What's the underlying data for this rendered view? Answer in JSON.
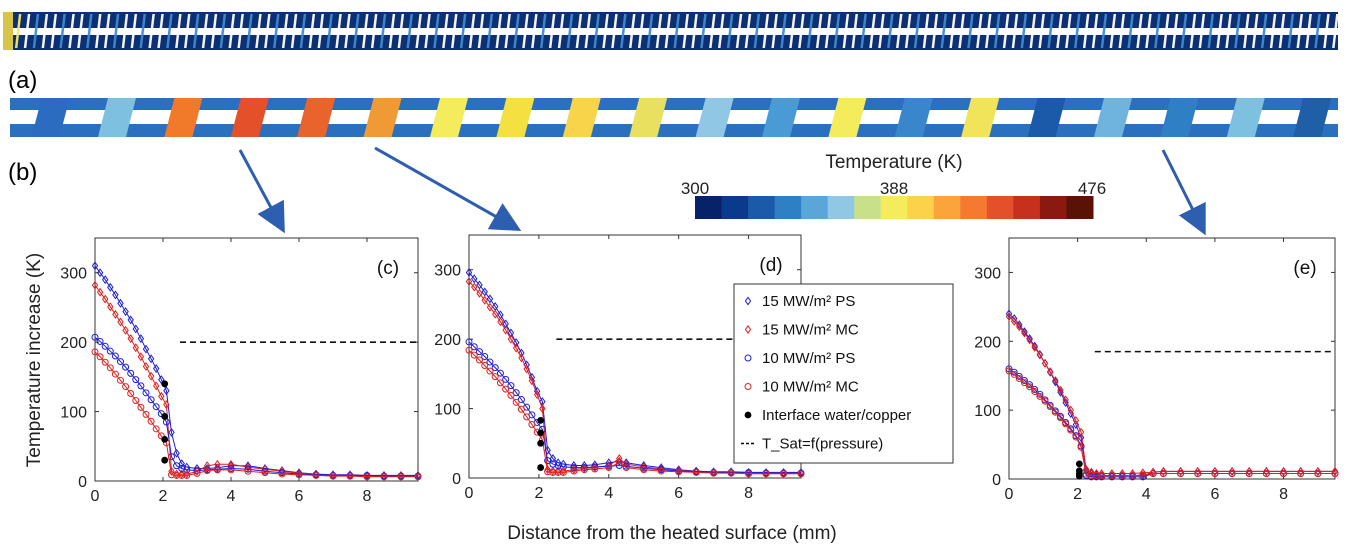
{
  "figure": {
    "panel_a": "(a)",
    "panel_b": "(b)",
    "xlabel": "Distance from the heated surface (mm)",
    "ylabel": "Temperature increase (K)"
  },
  "colorbar": {
    "title": "Temperature (K)",
    "ticks": [
      "300",
      "388",
      "476"
    ],
    "range": [
      300,
      476
    ],
    "colors": [
      "#08226a",
      "#0a3a8c",
      "#1b5aa8",
      "#2f7fc4",
      "#5aa6d8",
      "#8fc7e4",
      "#c8e08a",
      "#f4ec5c",
      "#fbd24a",
      "#fba43c",
      "#f57a30",
      "#e4502a",
      "#c8301e",
      "#8a1a10",
      "#5a1206"
    ]
  },
  "arrows": "blue",
  "legend": [
    {
      "label": "15 MW/m² PS",
      "marker": "diamond",
      "color": "#1f1fd6"
    },
    {
      "label": "15 MW/m² MC",
      "marker": "diamond",
      "color": "#e02020"
    },
    {
      "label": "10 MW/m² PS",
      "marker": "circle",
      "color": "#1f1fd6"
    },
    {
      "label": "10 MW/m² MC",
      "marker": "circle",
      "color": "#e02020"
    },
    {
      "label": "Interface water/copper",
      "marker": "dot",
      "color": "#000000"
    },
    {
      "label": "T_Sat=f(pressure)",
      "marker": "dashed",
      "color": "#000000"
    }
  ],
  "chart_data": [
    {
      "type": "line",
      "panel": "(c)",
      "xlim": [
        0,
        9.5
      ],
      "ylim": [
        0,
        350
      ],
      "xticks": [
        "0",
        "2",
        "4",
        "6",
        "8"
      ],
      "yticks": [
        "0",
        "100",
        "200",
        "300"
      ],
      "tsat": 200,
      "series": [
        {
          "name": "15 MW/m² PS",
          "x": [
            0,
            0.15,
            0.3,
            0.45,
            0.6,
            0.75,
            0.9,
            1.05,
            1.2,
            1.35,
            1.5,
            1.65,
            1.8,
            1.95,
            2.1,
            2.25,
            2.4,
            2.55,
            2.7,
            3.0,
            3.3,
            3.6,
            4.0,
            4.5,
            5.0,
            5.5,
            6.0,
            6.5,
            7.0,
            7.5,
            8.0,
            8.5,
            9.0,
            9.5
          ],
          "y": [
            310,
            300,
            290,
            279,
            268,
            256,
            244,
            232,
            219,
            205,
            190,
            176,
            162,
            146,
            130,
            70,
            40,
            25,
            20,
            18,
            18,
            19,
            22,
            22,
            18,
            15,
            12,
            10,
            9,
            9,
            8,
            8,
            8,
            8
          ]
        },
        {
          "name": "15 MW/m² MC",
          "x": [
            0,
            0.15,
            0.3,
            0.45,
            0.6,
            0.75,
            0.9,
            1.05,
            1.2,
            1.35,
            1.5,
            1.65,
            1.8,
            1.95,
            2.1,
            2.25,
            2.4,
            2.55,
            2.7,
            3.0,
            3.3,
            3.6,
            4.0,
            4.5,
            5.0,
            5.5,
            6.0,
            6.5,
            7.0,
            7.5,
            8.0,
            8.5,
            9.0,
            9.5
          ],
          "y": [
            282,
            272,
            262,
            251,
            240,
            229,
            217,
            205,
            192,
            179,
            165,
            151,
            137,
            122,
            110,
            14,
            10,
            10,
            10,
            14,
            22,
            24,
            24,
            20,
            17,
            14,
            11,
            9,
            8,
            8,
            7,
            7,
            7,
            7
          ]
        },
        {
          "name": "10 MW/m² PS",
          "x": [
            0,
            0.15,
            0.3,
            0.45,
            0.6,
            0.75,
            0.9,
            1.05,
            1.2,
            1.35,
            1.5,
            1.65,
            1.8,
            1.95,
            2.1,
            2.25,
            2.4,
            2.55,
            2.7,
            3.0,
            3.3,
            3.6,
            4.0,
            4.5,
            5.0,
            5.5,
            6.0,
            6.5,
            7.0,
            7.5,
            8.0,
            8.5,
            9.0,
            9.5
          ],
          "y": [
            207,
            201,
            194,
            187,
            180,
            172,
            164,
            155,
            146,
            137,
            127,
            117,
            107,
            97,
            85,
            35,
            22,
            18,
            16,
            15,
            16,
            17,
            18,
            17,
            14,
            12,
            10,
            9,
            8,
            8,
            8,
            7,
            7,
            7
          ]
        },
        {
          "name": "10 MW/m² MC",
          "x": [
            0,
            0.15,
            0.3,
            0.45,
            0.6,
            0.75,
            0.9,
            1.05,
            1.2,
            1.35,
            1.5,
            1.65,
            1.8,
            1.95,
            2.1,
            2.25,
            2.4,
            2.55,
            2.7,
            3.0,
            3.3,
            3.6,
            4.0,
            4.5,
            5.0,
            5.5,
            6.0,
            6.5,
            7.0,
            7.5,
            8.0,
            8.5,
            9.0,
            9.5
          ],
          "y": [
            186,
            179,
            171,
            163,
            154,
            145,
            136,
            126,
            116,
            106,
            96,
            86,
            75,
            65,
            55,
            9,
            8,
            8,
            8,
            11,
            15,
            16,
            16,
            14,
            12,
            10,
            9,
            8,
            7,
            7,
            6,
            6,
            6,
            6
          ]
        },
        {
          "name": "Interface water/copper",
          "x": [
            2.05,
            2.05,
            2.05,
            2.05
          ],
          "y": [
            140,
            93,
            60,
            30
          ]
        }
      ]
    },
    {
      "type": "line",
      "panel": "(d)",
      "xlim": [
        0,
        9.5
      ],
      "ylim": [
        0,
        350
      ],
      "xticks": [
        "0",
        "2",
        "4",
        "6",
        "8"
      ],
      "yticks": [
        "0",
        "100",
        "200",
        "300"
      ],
      "tsat": 200,
      "series": [
        {
          "name": "15 MW/m² PS",
          "x": [
            0,
            0.15,
            0.3,
            0.45,
            0.6,
            0.75,
            0.9,
            1.05,
            1.2,
            1.35,
            1.5,
            1.65,
            1.8,
            1.95,
            2.1,
            2.25,
            2.4,
            2.55,
            2.7,
            3.0,
            3.3,
            3.6,
            4.0,
            4.3,
            4.5,
            5.0,
            5.5,
            6.0,
            6.5,
            7.0,
            7.5,
            8.0,
            8.5,
            9.0,
            9.5
          ],
          "y": [
            296,
            287,
            278,
            268,
            258,
            247,
            235,
            222,
            209,
            195,
            180,
            163,
            145,
            125,
            110,
            40,
            28,
            22,
            20,
            18,
            18,
            19,
            22,
            24,
            22,
            18,
            15,
            12,
            10,
            9,
            9,
            8,
            8,
            8,
            8
          ]
        },
        {
          "name": "15 MW/m² MC",
          "x": [
            0,
            0.15,
            0.3,
            0.45,
            0.6,
            0.75,
            0.9,
            1.05,
            1.2,
            1.35,
            1.5,
            1.65,
            1.8,
            1.95,
            2.1,
            2.25,
            2.4,
            2.55,
            2.7,
            3.0,
            3.3,
            3.6,
            4.0,
            4.3,
            4.5,
            5.0,
            5.5,
            6.0,
            6.5,
            7.0,
            7.5,
            8.0,
            8.5,
            9.0,
            9.5
          ],
          "y": [
            283,
            275,
            266,
            256,
            246,
            236,
            225,
            213,
            200,
            187,
            173,
            157,
            140,
            120,
            100,
            12,
            10,
            10,
            10,
            12,
            14,
            15,
            18,
            28,
            20,
            16,
            13,
            11,
            9,
            8,
            8,
            7,
            7,
            7,
            7
          ]
        },
        {
          "name": "10 MW/m² PS",
          "x": [
            0,
            0.15,
            0.3,
            0.45,
            0.6,
            0.75,
            0.9,
            1.05,
            1.2,
            1.35,
            1.5,
            1.65,
            1.8,
            1.95,
            2.1,
            2.25,
            2.4,
            2.55,
            2.7,
            3.0,
            3.3,
            3.6,
            4.0,
            4.3,
            4.5,
            5.0,
            5.5,
            6.0,
            6.5,
            7.0,
            7.5,
            8.0,
            8.5,
            9.0,
            9.5
          ],
          "y": [
            196,
            189,
            182,
            175,
            167,
            159,
            151,
            142,
            133,
            123,
            113,
            102,
            91,
            80,
            70,
            25,
            20,
            18,
            16,
            15,
            15,
            16,
            17,
            18,
            17,
            14,
            12,
            10,
            9,
            8,
            8,
            8,
            7,
            7,
            7
          ]
        },
        {
          "name": "10 MW/m² MC",
          "x": [
            0,
            0.15,
            0.3,
            0.45,
            0.6,
            0.75,
            0.9,
            1.05,
            1.2,
            1.35,
            1.5,
            1.65,
            1.8,
            1.95,
            2.1,
            2.25,
            2.4,
            2.55,
            2.7,
            3.0,
            3.3,
            3.6,
            4.0,
            4.3,
            4.5,
            5.0,
            5.5,
            6.0,
            6.5,
            7.0,
            7.5,
            8.0,
            8.5,
            9.0,
            9.5
          ],
          "y": [
            184,
            177,
            170,
            162,
            154,
            146,
            137,
            128,
            119,
            109,
            99,
            88,
            77,
            66,
            55,
            9,
            8,
            8,
            8,
            10,
            12,
            13,
            15,
            22,
            15,
            12,
            10,
            9,
            8,
            7,
            7,
            6,
            6,
            6,
            6
          ]
        },
        {
          "name": "Interface water/copper",
          "x": [
            2.05,
            2.05,
            2.05,
            2.05
          ],
          "y": [
            83,
            65,
            50,
            15
          ]
        }
      ]
    },
    {
      "type": "line",
      "panel": "(e)",
      "xlim": [
        0,
        9.5
      ],
      "ylim": [
        0,
        350
      ],
      "xticks": [
        "0",
        "2",
        "4",
        "6",
        "8"
      ],
      "yticks": [
        "0",
        "100",
        "200",
        "300"
      ],
      "tsat": 185,
      "series": [
        {
          "name": "15 MW/m² PS",
          "x": [
            0,
            0.15,
            0.3,
            0.45,
            0.6,
            0.75,
            0.9,
            1.05,
            1.2,
            1.35,
            1.5,
            1.65,
            1.8,
            1.95,
            2.1,
            2.25,
            2.4,
            2.55,
            2.7,
            3.0,
            3.3,
            3.6,
            3.9,
            4.2,
            4.5,
            5.0,
            5.5,
            6.0,
            6.5,
            7.0,
            7.5,
            8.0,
            8.5,
            9.0,
            9.5
          ],
          "y": [
            240,
            233,
            224,
            214,
            204,
            193,
            181,
            168,
            155,
            141,
            126,
            111,
            95,
            79,
            60,
            12,
            8,
            6,
            5,
            5,
            5,
            5,
            5,
            10,
            11,
            11,
            11,
            11,
            11,
            11,
            11,
            11,
            11,
            11,
            11
          ]
        },
        {
          "name": "15 MW/m² MC",
          "x": [
            0,
            0.15,
            0.3,
            0.45,
            0.6,
            0.75,
            0.9,
            1.05,
            1.2,
            1.35,
            1.5,
            1.65,
            1.8,
            1.95,
            2.1,
            2.25,
            2.4,
            2.55,
            2.7,
            3.0,
            3.3,
            3.6,
            3.9,
            4.2,
            4.5,
            5.0,
            5.5,
            6.0,
            6.5,
            7.0,
            7.5,
            8.0,
            8.5,
            9.0,
            9.5
          ],
          "y": [
            236,
            229,
            221,
            212,
            202,
            191,
            180,
            168,
            156,
            143,
            129,
            115,
            100,
            85,
            68,
            14,
            10,
            8,
            8,
            8,
            8,
            8,
            9,
            10,
            11,
            11,
            11,
            11,
            11,
            11,
            11,
            11,
            11,
            11,
            11
          ]
        },
        {
          "name": "10 MW/m² PS",
          "x": [
            0,
            0.15,
            0.3,
            0.45,
            0.6,
            0.75,
            0.9,
            1.05,
            1.2,
            1.35,
            1.5,
            1.65,
            1.8,
            1.95,
            2.1,
            2.25,
            2.4,
            2.55,
            2.7,
            3.0,
            3.3,
            3.6,
            3.9,
            4.2,
            4.5,
            5.0,
            5.5,
            6.0,
            6.5,
            7.0,
            7.5,
            8.0,
            8.5,
            9.0,
            9.5
          ],
          "y": [
            160,
            155,
            149,
            143,
            137,
            130,
            123,
            115,
            107,
            99,
            91,
            82,
            73,
            63,
            48,
            5,
            3,
            3,
            3,
            3,
            3,
            3,
            3,
            8,
            8,
            8,
            8,
            8,
            8,
            8,
            8,
            8,
            8,
            8,
            8
          ]
        },
        {
          "name": "10 MW/m² MC",
          "x": [
            0,
            0.15,
            0.3,
            0.45,
            0.6,
            0.75,
            0.9,
            1.05,
            1.2,
            1.35,
            1.5,
            1.65,
            1.8,
            1.95,
            2.1,
            2.25,
            2.4,
            2.55,
            2.7,
            3.0,
            3.3,
            3.6,
            3.9,
            4.2,
            4.5,
            5.0,
            5.5,
            6.0,
            6.5,
            7.0,
            7.5,
            8.0,
            8.5,
            9.0,
            9.5
          ],
          "y": [
            157,
            152,
            146,
            140,
            134,
            127,
            120,
            113,
            105,
            97,
            89,
            80,
            71,
            61,
            46,
            7,
            5,
            5,
            5,
            5,
            5,
            5,
            6,
            8,
            8,
            8,
            8,
            8,
            8,
            8,
            8,
            8,
            8,
            8,
            8
          ]
        },
        {
          "name": "Interface water/copper",
          "x": [
            2.05,
            2.05,
            2.05,
            2.05
          ],
          "y": [
            22,
            12,
            8,
            4
          ]
        }
      ]
    }
  ]
}
